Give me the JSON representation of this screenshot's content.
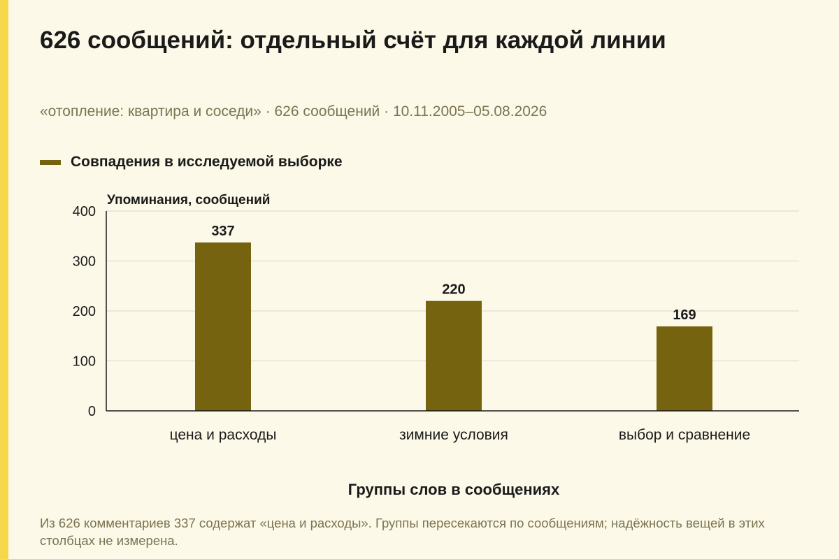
{
  "title": "626 сообщений: отдельный счёт для каждой линии",
  "subtitle": "«отопление: квартира и соседи» · 626 сообщений · 10.11.2005–05.08.2026",
  "footnote": "Из 626 комментариев 337 содержат «цена и расходы». Группы пересекаются по сообщениям; надёжность вещей в этих столбцах не измерена.",
  "colors": {
    "bar": "#766310",
    "accent": "#F7D84A",
    "background": "#FDF9E8",
    "muted_text": "#7A7451",
    "grid": "#D8D6CC"
  },
  "chart_data": {
    "type": "bar",
    "categories": [
      "цена и расходы",
      "зимние условия",
      "выбор и сравнение"
    ],
    "series": [
      {
        "name": "Совпадения в исследуемой выборке",
        "values": [
          337,
          220,
          169
        ]
      }
    ],
    "ylabel": "Упоминания, сообщений",
    "xlabel": "Группы слов в сообщениях",
    "ylim": [
      0,
      400
    ],
    "yticks": [
      0,
      100,
      200,
      300,
      400
    ],
    "grid": true,
    "legend_position": "top-left",
    "data_labels": true
  }
}
